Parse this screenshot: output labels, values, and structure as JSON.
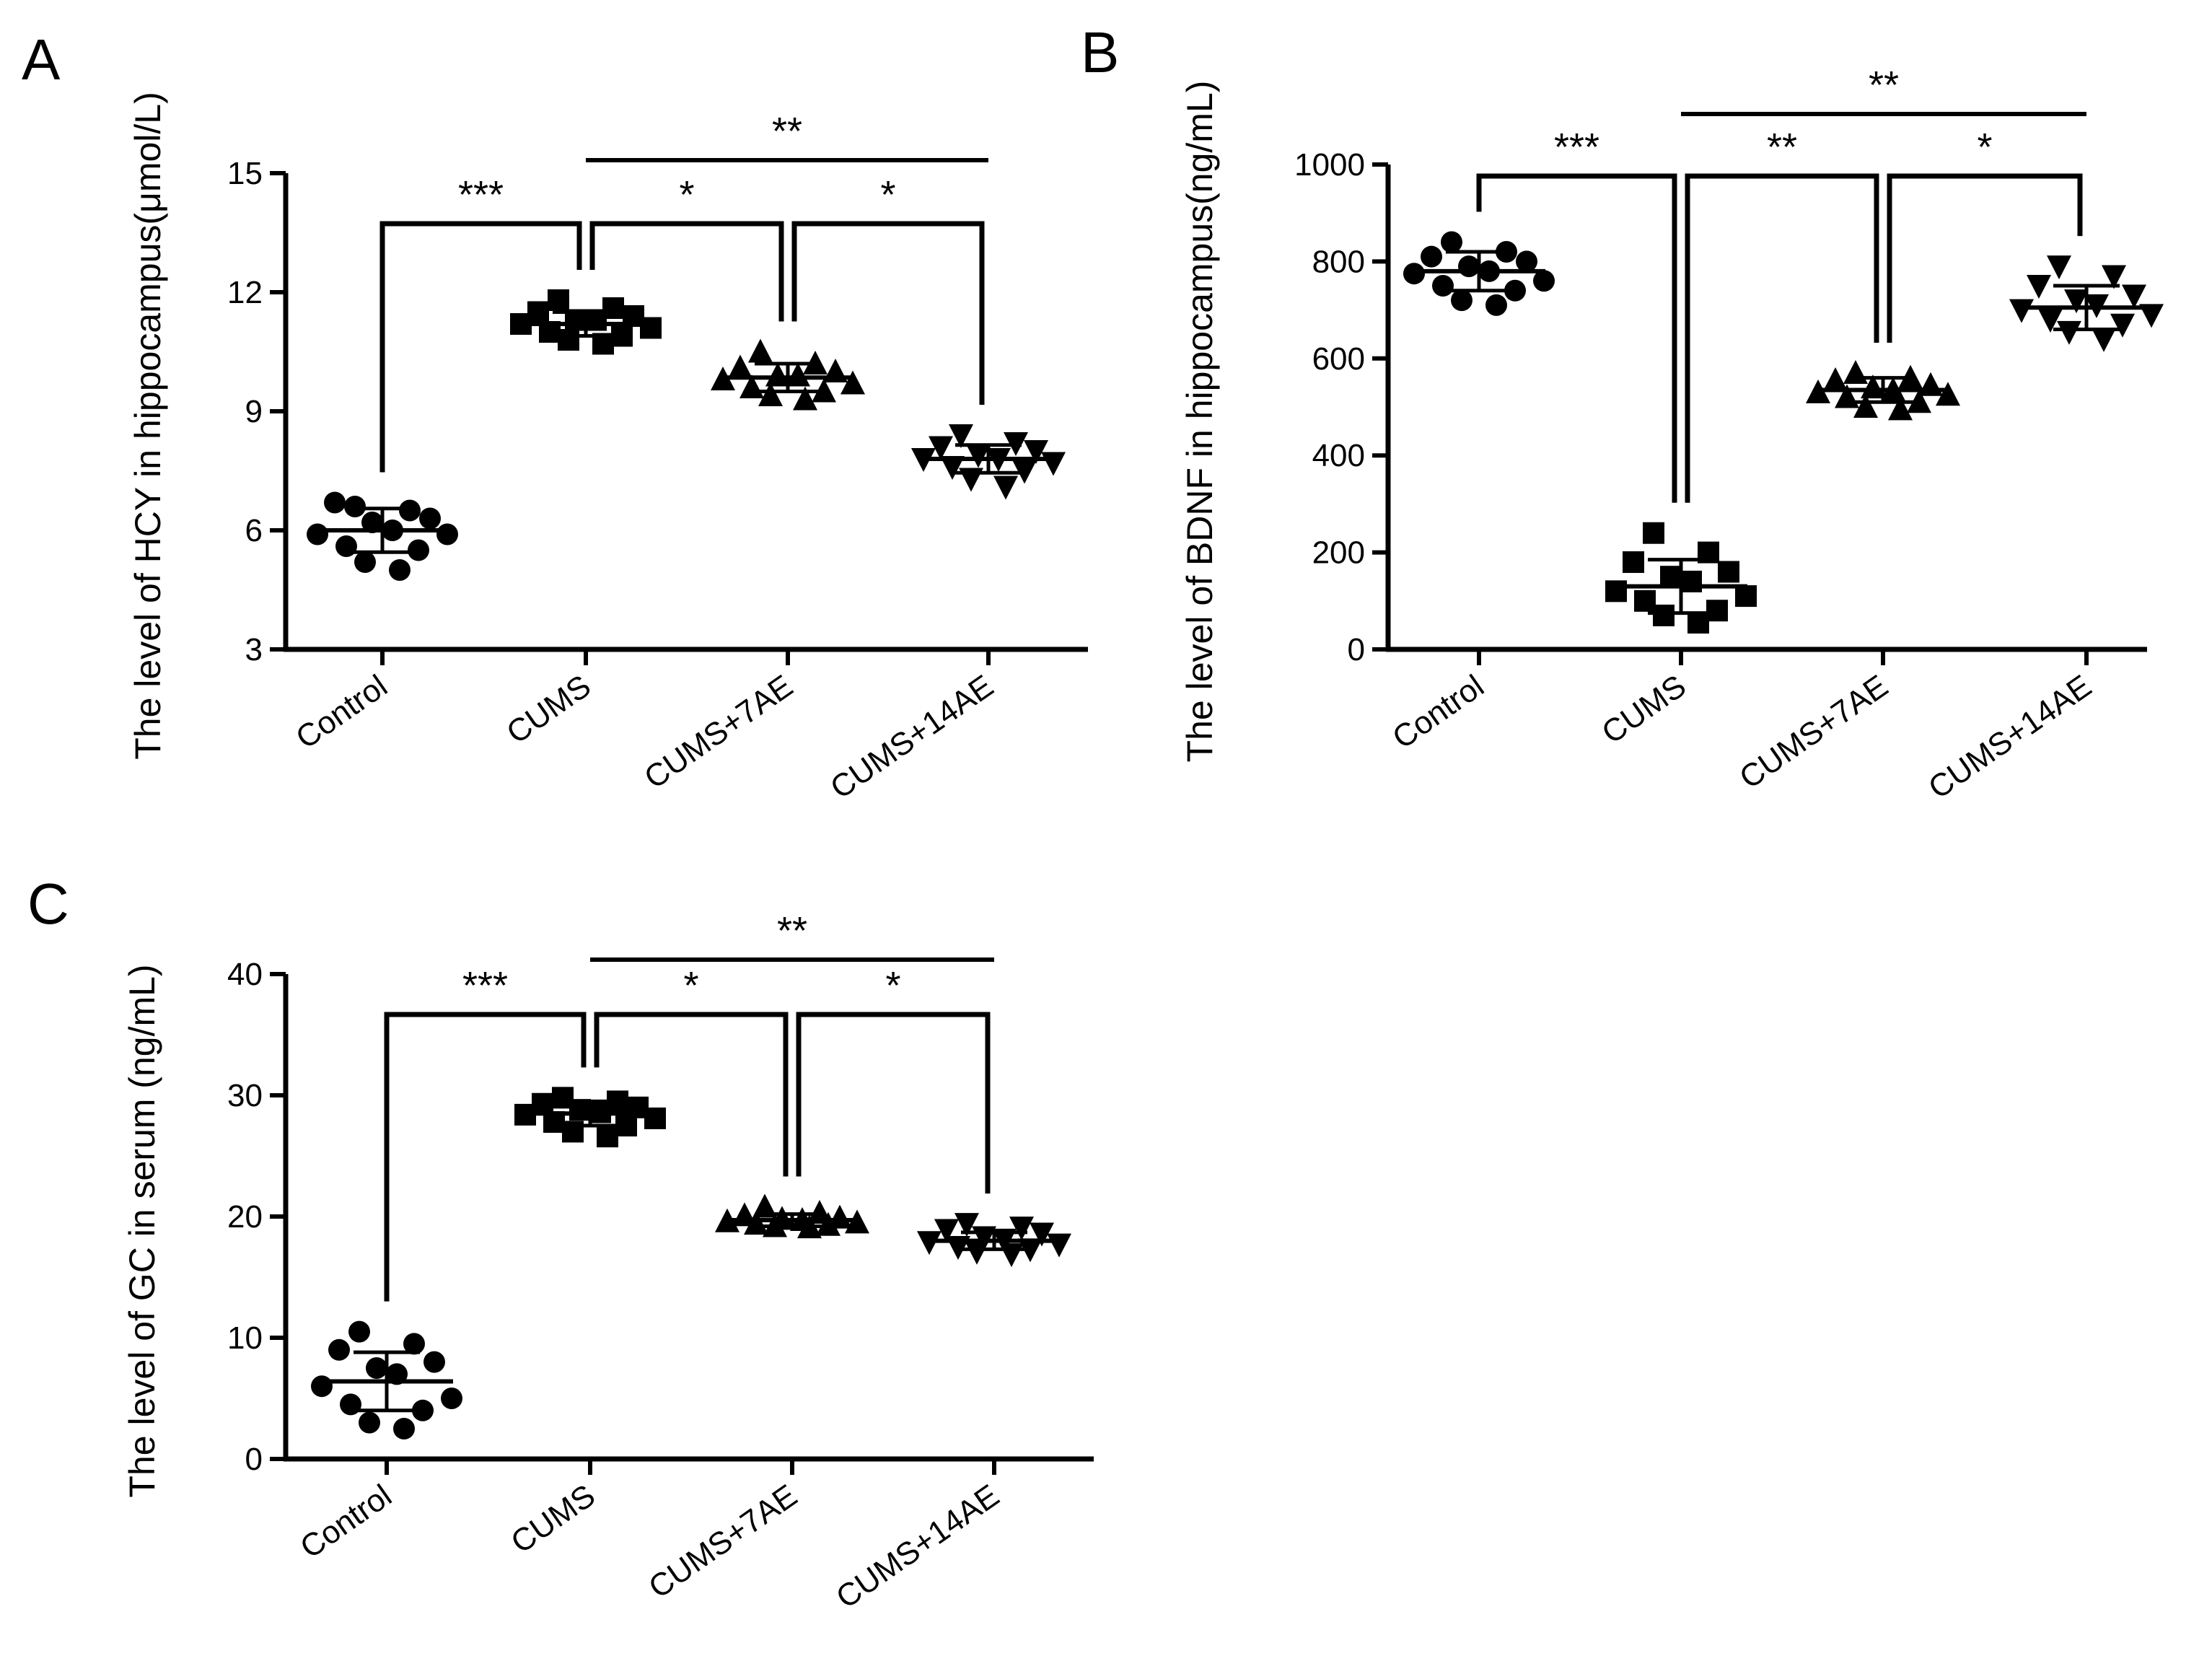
{
  "figure_colors": {
    "ink": "#000000",
    "background": "#ffffff"
  },
  "chart_data": [
    {
      "panel": "A",
      "type": "scatter",
      "title": "",
      "xlabel": "",
      "ylabel": "The level of HCY in hippocampus(μmol/L)",
      "ylim": [
        3,
        15
      ],
      "yticks": [
        3,
        6,
        9,
        12,
        15
      ],
      "categories": [
        "Control",
        "CUMS",
        "CUMS+7AE",
        "CUMS+14AE"
      ],
      "markers": [
        "circle",
        "square",
        "triangle-up",
        "triangle-down"
      ],
      "series": [
        {
          "name": "Control",
          "mean": 6.0,
          "sd": 0.55,
          "values": [
            6.6,
            6.5,
            6.7,
            6.3,
            6.2,
            6.0,
            5.9,
            5.9,
            5.6,
            5.5,
            5.2,
            5.0
          ]
        },
        {
          "name": "CUMS",
          "mean": 11.2,
          "sd": 0.3,
          "values": [
            11.8,
            11.6,
            11.5,
            11.4,
            11.3,
            11.3,
            11.2,
            11.1,
            11.0,
            10.9,
            10.8,
            10.7
          ]
        },
        {
          "name": "CUMS+7AE",
          "mean": 9.85,
          "sd": 0.35,
          "values": [
            10.5,
            10.2,
            10.1,
            10.0,
            9.9,
            9.9,
            9.8,
            9.7,
            9.6,
            9.5,
            9.4,
            9.3
          ]
        },
        {
          "name": "CUMS+14AE",
          "mean": 7.8,
          "sd": 0.35,
          "values": [
            8.4,
            8.2,
            8.1,
            8.0,
            7.9,
            7.8,
            7.8,
            7.7,
            7.6,
            7.5,
            7.3,
            7.1
          ]
        }
      ],
      "significance": [
        {
          "from": 0,
          "to": 1,
          "label": "***",
          "style": "bracket"
        },
        {
          "from": 1,
          "to": 2,
          "label": "*",
          "style": "bracket"
        },
        {
          "from": 2,
          "to": 3,
          "label": "*",
          "style": "bracket"
        },
        {
          "from": 1,
          "to": 3,
          "label": "**",
          "style": "line"
        }
      ]
    },
    {
      "panel": "B",
      "type": "scatter",
      "title": "",
      "xlabel": "",
      "ylabel": "The level of BDNF in hippocampus(ng/mL)",
      "ylim": [
        0,
        1000
      ],
      "yticks": [
        0,
        200,
        400,
        600,
        800,
        1000
      ],
      "categories": [
        "Control",
        "CUMS",
        "CUMS+7AE",
        "CUMS+14AE"
      ],
      "markers": [
        "circle",
        "square",
        "triangle-up",
        "triangle-down"
      ],
      "series": [
        {
          "name": "Control",
          "mean": 780,
          "sd": 40,
          "values": [
            840,
            820,
            810,
            800,
            790,
            780,
            775,
            760,
            750,
            740,
            720,
            710
          ]
        },
        {
          "name": "CUMS",
          "mean": 130,
          "sd": 55,
          "values": [
            240,
            200,
            180,
            160,
            150,
            140,
            120,
            110,
            100,
            80,
            70,
            55
          ]
        },
        {
          "name": "CUMS+7AE",
          "mean": 535,
          "sd": 25,
          "values": [
            570,
            560,
            555,
            545,
            540,
            535,
            530,
            525,
            520,
            510,
            500,
            495
          ]
        },
        {
          "name": "CUMS+14AE",
          "mean": 705,
          "sd": 45,
          "values": [
            790,
            770,
            750,
            730,
            720,
            710,
            700,
            690,
            680,
            670,
            655,
            640
          ]
        }
      ],
      "significance": [
        {
          "from": 0,
          "to": 1,
          "label": "***",
          "style": "bracket"
        },
        {
          "from": 1,
          "to": 2,
          "label": "**",
          "style": "bracket"
        },
        {
          "from": 2,
          "to": 3,
          "label": "*",
          "style": "bracket"
        },
        {
          "from": 1,
          "to": 3,
          "label": "**",
          "style": "line"
        }
      ]
    },
    {
      "panel": "C",
      "type": "scatter",
      "title": "",
      "xlabel": "",
      "ylabel": "The level of GC in serum (ng/mL)",
      "ylim": [
        0,
        40
      ],
      "yticks": [
        0,
        10,
        20,
        30,
        40
      ],
      "categories": [
        "Control",
        "CUMS",
        "CUMS+7AE",
        "CUMS+14AE"
      ],
      "markers": [
        "circle",
        "square",
        "triangle-up",
        "triangle-down"
      ],
      "series": [
        {
          "name": "Control",
          "mean": 6.4,
          "sd": 2.4,
          "values": [
            10.5,
            9.5,
            9.0,
            8.0,
            7.5,
            7.0,
            6.0,
            5.0,
            4.5,
            4.0,
            3.0,
            2.5
          ]
        },
        {
          "name": "CUMS",
          "mean": 28.5,
          "sd": 1.0,
          "values": [
            29.8,
            29.5,
            29.3,
            29.0,
            28.8,
            28.6,
            28.4,
            28.1,
            27.8,
            27.5,
            27.0,
            26.6
          ]
        },
        {
          "name": "CUMS+7AE",
          "mean": 19.7,
          "sd": 0.5,
          "values": [
            20.8,
            20.3,
            20.1,
            19.9,
            19.8,
            19.7,
            19.6,
            19.5,
            19.4,
            19.3,
            19.2,
            19.1
          ]
        },
        {
          "name": "CUMS+14AE",
          "mean": 18.0,
          "sd": 0.7,
          "values": [
            19.4,
            19.1,
            18.9,
            18.6,
            18.3,
            18.1,
            17.9,
            17.7,
            17.5,
            17.3,
            17.1,
            16.9
          ]
        }
      ],
      "significance": [
        {
          "from": 0,
          "to": 1,
          "label": "***",
          "style": "bracket"
        },
        {
          "from": 1,
          "to": 2,
          "label": "*",
          "style": "bracket"
        },
        {
          "from": 2,
          "to": 3,
          "label": "*",
          "style": "bracket"
        },
        {
          "from": 1,
          "to": 3,
          "label": "**",
          "style": "line"
        }
      ]
    }
  ]
}
